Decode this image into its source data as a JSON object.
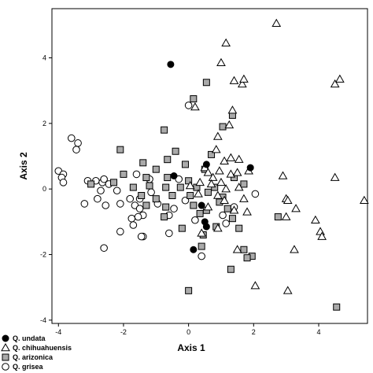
{
  "chart_data": {
    "type": "scatter",
    "xlabel": "Axis 1",
    "ylabel": "Axis 2",
    "xlim": [
      -4.2,
      5.5
    ],
    "ylim": [
      -4.1,
      5.5
    ],
    "x_ticks": [
      -4,
      -2,
      0,
      2,
      4
    ],
    "y_ticks": [
      -4,
      -2,
      0,
      2,
      4
    ],
    "grid": false,
    "legend_position": "bottom-left",
    "series": [
      {
        "name": "Q. undata",
        "marker": "filled-circle",
        "color": "#000000",
        "points": [
          [
            -0.55,
            3.8
          ],
          [
            1.9,
            0.65
          ],
          [
            -0.45,
            0.4
          ],
          [
            0.55,
            0.75
          ],
          [
            0.4,
            -0.5
          ],
          [
            0.5,
            -1.0
          ],
          [
            0.55,
            -1.15
          ],
          [
            0.15,
            -1.85
          ]
        ]
      },
      {
        "name": "Q. chihuahuensis",
        "marker": "open-triangle",
        "color": "#000000",
        "points": [
          [
            2.7,
            5.05
          ],
          [
            1.15,
            4.45
          ],
          [
            1.0,
            3.85
          ],
          [
            1.4,
            3.3
          ],
          [
            1.65,
            3.2
          ],
          [
            1.7,
            3.35
          ],
          [
            4.5,
            3.2
          ],
          [
            4.65,
            3.35
          ],
          [
            0.2,
            2.5
          ],
          [
            1.35,
            2.4
          ],
          [
            1.25,
            1.95
          ],
          [
            0.9,
            1.6
          ],
          [
            0.85,
            1.2
          ],
          [
            1.1,
            0.85
          ],
          [
            1.3,
            0.95
          ],
          [
            1.55,
            0.9
          ],
          [
            0.5,
            0.65
          ],
          [
            0.6,
            0.5
          ],
          [
            0.75,
            0.35
          ],
          [
            0.95,
            0.55
          ],
          [
            1.3,
            0.45
          ],
          [
            1.5,
            0.5
          ],
          [
            1.85,
            0.55
          ],
          [
            0.05,
            0.1
          ],
          [
            0.35,
            0.2
          ],
          [
            0.7,
            0.15
          ],
          [
            1.0,
            0.2
          ],
          [
            1.15,
            0.0
          ],
          [
            1.55,
            0.05
          ],
          [
            0.3,
            -0.15
          ],
          [
            0.9,
            -0.2
          ],
          [
            1.1,
            -0.35
          ],
          [
            1.7,
            -0.3
          ],
          [
            0.6,
            -0.55
          ],
          [
            1.4,
            -0.65
          ],
          [
            1.8,
            -0.7
          ],
          [
            3.0,
            -0.3
          ],
          [
            3.05,
            -0.35
          ],
          [
            3.3,
            -0.6
          ],
          [
            3.0,
            -0.85
          ],
          [
            3.9,
            -0.95
          ],
          [
            4.05,
            -1.3
          ],
          [
            4.1,
            -1.45
          ],
          [
            0.4,
            -1.35
          ],
          [
            0.9,
            -1.2
          ],
          [
            1.5,
            -1.85
          ],
          [
            3.25,
            -1.85
          ],
          [
            2.05,
            -2.95
          ],
          [
            3.05,
            -3.1
          ],
          [
            4.5,
            0.35
          ],
          [
            5.4,
            -0.35
          ],
          [
            2.9,
            0.4
          ]
        ]
      },
      {
        "name": "Q. arizonica",
        "marker": "gray-square",
        "color": "#aaaaaa",
        "points": [
          [
            0.55,
            3.25
          ],
          [
            0.15,
            2.75
          ],
          [
            -0.75,
            1.8
          ],
          [
            1.05,
            1.9
          ],
          [
            1.35,
            2.25
          ],
          [
            -2.1,
            1.2
          ],
          [
            -0.4,
            1.15
          ],
          [
            0.7,
            1.05
          ],
          [
            -0.65,
            0.9
          ],
          [
            -1.4,
            0.8
          ],
          [
            -1.0,
            0.6
          ],
          [
            -0.1,
            0.75
          ],
          [
            0.5,
            0.6
          ],
          [
            -2.0,
            0.45
          ],
          [
            -1.3,
            0.35
          ],
          [
            -0.65,
            0.35
          ],
          [
            0.0,
            0.25
          ],
          [
            1.4,
            0.35
          ],
          [
            -3.0,
            0.15
          ],
          [
            -2.3,
            0.2
          ],
          [
            -1.7,
            0.05
          ],
          [
            -1.2,
            0.1
          ],
          [
            -0.7,
            0.05
          ],
          [
            -0.25,
            0.05
          ],
          [
            0.25,
            0.05
          ],
          [
            0.8,
            0.05
          ],
          [
            -1.45,
            -0.2
          ],
          [
            -1.0,
            -0.3
          ],
          [
            -0.5,
            -0.2
          ],
          [
            0.05,
            -0.2
          ],
          [
            0.6,
            -0.1
          ],
          [
            1.05,
            -0.25
          ],
          [
            -1.3,
            -0.5
          ],
          [
            -0.7,
            -0.55
          ],
          [
            0.15,
            -0.5
          ],
          [
            0.55,
            -0.65
          ],
          [
            1.2,
            -0.6
          ],
          [
            -0.75,
            -0.85
          ],
          [
            0.35,
            -0.75
          ],
          [
            1.35,
            -0.9
          ],
          [
            -0.2,
            -1.2
          ],
          [
            0.85,
            -1.15
          ],
          [
            1.55,
            -1.2
          ],
          [
            0.45,
            -1.4
          ],
          [
            2.75,
            -0.85
          ],
          [
            1.7,
            -1.85
          ],
          [
            0.4,
            -1.75
          ],
          [
            1.95,
            -2.05
          ],
          [
            1.3,
            -2.45
          ],
          [
            1.8,
            -2.1
          ],
          [
            0.0,
            -3.1
          ],
          [
            4.55,
            -3.6
          ],
          [
            1.7,
            0.15
          ],
          [
            0.95,
            -0.4
          ]
        ]
      },
      {
        "name": "Q. grisea",
        "marker": "open-circle",
        "color": "#000000",
        "points": [
          [
            0.0,
            2.55
          ],
          [
            -3.6,
            1.55
          ],
          [
            -3.4,
            1.4
          ],
          [
            -3.45,
            1.2
          ],
          [
            -4.0,
            0.55
          ],
          [
            -3.85,
            0.45
          ],
          [
            -3.9,
            0.35
          ],
          [
            -3.85,
            0.2
          ],
          [
            -3.1,
            0.25
          ],
          [
            -2.85,
            0.25
          ],
          [
            -2.65,
            0.2
          ],
          [
            -2.6,
            0.3
          ],
          [
            -2.45,
            0.15
          ],
          [
            -2.7,
            -0.05
          ],
          [
            -2.2,
            -0.05
          ],
          [
            -1.6,
            0.45
          ],
          [
            -1.2,
            0.3
          ],
          [
            -0.3,
            0.3
          ],
          [
            -1.5,
            -0.3
          ],
          [
            -1.15,
            -0.1
          ],
          [
            -2.8,
            -0.3
          ],
          [
            -3.2,
            -0.45
          ],
          [
            -2.55,
            -0.5
          ],
          [
            -2.1,
            -0.45
          ],
          [
            -1.8,
            -0.3
          ],
          [
            -1.65,
            -0.5
          ],
          [
            -1.5,
            -0.6
          ],
          [
            -0.95,
            -0.45
          ],
          [
            -0.45,
            -0.6
          ],
          [
            -1.4,
            -0.8
          ],
          [
            -1.75,
            -0.9
          ],
          [
            -1.55,
            -0.85
          ],
          [
            -0.6,
            -0.8
          ],
          [
            -1.7,
            -1.1
          ],
          [
            -2.1,
            -1.3
          ],
          [
            -1.4,
            -1.45
          ],
          [
            -1.45,
            -1.45
          ],
          [
            -2.6,
            -1.8
          ],
          [
            -0.6,
            -1.35
          ],
          [
            0.4,
            -2.05
          ],
          [
            1.15,
            -1.05
          ],
          [
            1.4,
            -0.55
          ],
          [
            2.05,
            -0.15
          ],
          [
            0.2,
            -0.95
          ],
          [
            1.05,
            -0.8
          ],
          [
            -0.1,
            -0.35
          ]
        ]
      }
    ]
  }
}
